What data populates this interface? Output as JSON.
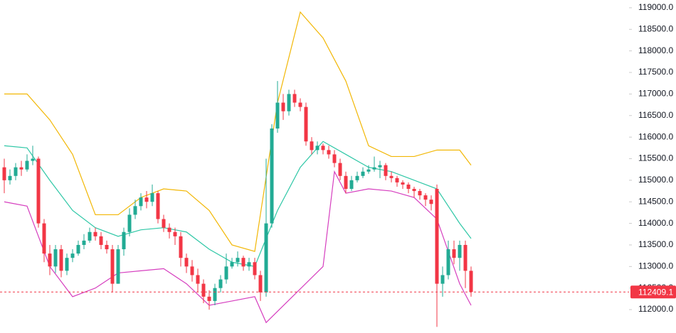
{
  "chart_data": {
    "type": "candlestick",
    "up_color": "#22ab94",
    "down_color": "#f23645",
    "ylim": [
      111540,
      119180
    ],
    "yticks": [
      {
        "value": 119000,
        "label": "119000.0"
      },
      {
        "value": 118500,
        "label": "118500.0"
      },
      {
        "value": 118000,
        "label": "118000.0"
      },
      {
        "value": 117500,
        "label": "117500.0"
      },
      {
        "value": 117000,
        "label": "117000.0"
      },
      {
        "value": 116500,
        "label": "116500.0"
      },
      {
        "value": 116000,
        "label": "116000.0"
      },
      {
        "value": 115500,
        "label": "115500.0"
      },
      {
        "value": 115000,
        "label": "115000.0"
      },
      {
        "value": 114500,
        "label": "114500.0"
      },
      {
        "value": 114000,
        "label": "114000.0"
      },
      {
        "value": 113500,
        "label": "113500.0"
      },
      {
        "value": 113000,
        "label": "113000.0"
      },
      {
        "value": 112500,
        "label": "112500.0"
      },
      {
        "value": 112000,
        "label": "112000.0"
      }
    ],
    "open": [
      115300,
      115000,
      115100,
      115300,
      115250,
      115450,
      115500,
      114000,
      113300,
      113000,
      113400,
      112900,
      113200,
      113300,
      113500,
      113600,
      113800,
      113700,
      113500,
      113400,
      112600,
      113400,
      113800,
      114200,
      114400,
      114600,
      114500,
      114700,
      114100,
      113900,
      113800,
      113700,
      113200,
      113000,
      112800,
      112600,
      112300,
      112200,
      112500,
      112700,
      113000,
      113100,
      113200,
      113000,
      113100,
      112800,
      112400,
      114000,
      116200,
      116800,
      116600,
      117000,
      116800,
      116700,
      115900,
      115700,
      115800,
      115700,
      115600,
      115400,
      115100,
      114800,
      115000,
      115100,
      115200,
      115250,
      115300,
      115350,
      115100,
      115050,
      114950,
      114900,
      114800,
      114750,
      114650,
      114550,
      114800,
      112600,
      112800,
      113400,
      113200,
      113500,
      112900
    ],
    "close": [
      115000,
      115100,
      115300,
      115250,
      115450,
      115500,
      114000,
      113300,
      113000,
      113400,
      112900,
      113200,
      113300,
      113500,
      113600,
      113800,
      113700,
      113500,
      113400,
      112600,
      113400,
      113800,
      114200,
      114400,
      114600,
      114500,
      114700,
      114100,
      113900,
      113800,
      113700,
      113200,
      113000,
      112800,
      112600,
      112300,
      112200,
      112500,
      112700,
      113000,
      113100,
      113200,
      113000,
      113100,
      112800,
      112400,
      114000,
      116200,
      116800,
      116600,
      117000,
      116800,
      116700,
      115900,
      115700,
      115800,
      115700,
      115600,
      115400,
      115100,
      114800,
      115000,
      115100,
      115200,
      115250,
      115300,
      115350,
      115100,
      115050,
      114950,
      114900,
      114800,
      114750,
      114650,
      114550,
      114450,
      112600,
      112800,
      113400,
      113200,
      113500,
      112900,
      112409.1
    ],
    "high": [
      115500,
      115250,
      115400,
      115450,
      115600,
      115800,
      115550,
      114100,
      113500,
      113500,
      113500,
      113300,
      113400,
      113600,
      113750,
      113900,
      113900,
      113800,
      113600,
      113500,
      113500,
      113900,
      114350,
      114550,
      114700,
      114750,
      114900,
      114750,
      114200,
      114000,
      113900,
      113800,
      113300,
      113150,
      112950,
      112700,
      112450,
      112600,
      112800,
      113300,
      113200,
      113350,
      113250,
      113200,
      113200,
      112900,
      115500,
      116300,
      117300,
      117000,
      117100,
      117100,
      116900,
      116800,
      116000,
      115900,
      115850,
      115800,
      115700,
      115500,
      115200,
      115100,
      115200,
      115300,
      115350,
      115550,
      115450,
      115400,
      115200,
      115100,
      115000,
      114950,
      114850,
      114800,
      114700,
      114650,
      114900,
      113000,
      113600,
      113600,
      113600,
      113600,
      113000
    ],
    "low": [
      114700,
      114900,
      115000,
      115100,
      115200,
      115350,
      113900,
      113100,
      112800,
      112850,
      112750,
      112800,
      113100,
      113250,
      113400,
      113550,
      113600,
      113400,
      113300,
      112400,
      112600,
      113250,
      113700,
      114100,
      114300,
      114350,
      114400,
      114000,
      113800,
      113650,
      113500,
      113000,
      112850,
      112650,
      112400,
      112150,
      112000,
      112100,
      112400,
      112600,
      112950,
      113000,
      112900,
      112900,
      112700,
      112200,
      112300,
      113900,
      116100,
      116400,
      116500,
      116700,
      116600,
      115800,
      115600,
      115600,
      115600,
      115500,
      115300,
      115000,
      114700,
      114750,
      114950,
      115050,
      115150,
      115200,
      115050,
      115000,
      114950,
      114850,
      114800,
      114700,
      114600,
      114550,
      114400,
      114300,
      111600,
      112300,
      112700,
      113050,
      112900,
      112500,
      112300
    ],
    "bands": [
      {
        "color": "#f2b705",
        "x": [
          0,
          4,
          8,
          12,
          16,
          20,
          24,
          28,
          32,
          36,
          40,
          44,
          48,
          52,
          56,
          60,
          64,
          68,
          72,
          76,
          80,
          82
        ],
        "values": [
          117000,
          117000,
          116400,
          115600,
          114200,
          114200,
          114600,
          114800,
          114750,
          114300,
          113500,
          113350,
          116800,
          118900,
          118300,
          117300,
          115800,
          115550,
          115550,
          115700,
          115700,
          115350
        ]
      },
      {
        "color": "#2ec7a6",
        "x": [
          0,
          4,
          8,
          12,
          16,
          20,
          24,
          28,
          32,
          36,
          40,
          44,
          48,
          52,
          56,
          60,
          64,
          68,
          72,
          76,
          80,
          82
        ],
        "values": [
          115800,
          115750,
          115000,
          114300,
          113900,
          113700,
          113850,
          113900,
          113800,
          113400,
          113100,
          113000,
          114300,
          115300,
          115900,
          115600,
          115300,
          115200,
          115000,
          114800,
          114000,
          113650
        ]
      },
      {
        "color": "#d63fbf",
        "x": [
          0,
          4,
          8,
          12,
          16,
          20,
          24,
          28,
          32,
          36,
          40,
          44,
          46,
          56,
          58,
          60,
          64,
          68,
          72,
          76,
          80,
          82
        ],
        "values": [
          114500,
          114400,
          113000,
          112300,
          112500,
          112850,
          112900,
          112950,
          112600,
          112100,
          112200,
          112300,
          111700,
          113000,
          115200,
          114700,
          114800,
          114750,
          114600,
          114100,
          112600,
          112100
        ]
      }
    ],
    "last_price": 112409.1
  }
}
